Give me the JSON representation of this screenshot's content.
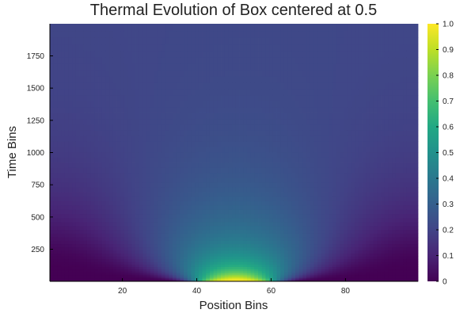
{
  "chart_data": {
    "type": "heatmap",
    "title": "Thermal Evolution of Box centered at 0.5",
    "xlabel": "Position Bins",
    "ylabel": "Time Bins",
    "x_range": [
      1,
      99
    ],
    "y_range": [
      1,
      1999
    ],
    "x_ticks": [
      20,
      40,
      60,
      80
    ],
    "y_ticks": [
      250,
      500,
      750,
      1000,
      1250,
      1500,
      1750
    ],
    "colorbar": {
      "colormap": "viridis",
      "range": [
        0,
        1
      ],
      "ticks": [
        0,
        0.1,
        0.2,
        0.3,
        0.4,
        0.5,
        0.6,
        0.7,
        0.8,
        0.9,
        1.0
      ],
      "tick_labels": [
        "0",
        "0.1",
        "0.2",
        "0.3",
        "0.4",
        "0.5",
        "0.6",
        "0.7",
        "0.8",
        "0.9",
        "1.0"
      ]
    },
    "initial_condition": {
      "description_values": "box of value 1 between position bins 40 and 60, 0 elsewhere",
      "box_start": 40,
      "box_end": 60,
      "box_value": 1,
      "background_value": 0
    },
    "grid": false,
    "legend": "colorbar-right"
  }
}
